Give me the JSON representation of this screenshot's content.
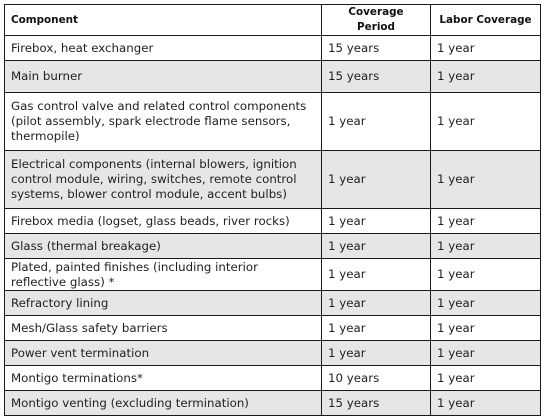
{
  "table": {
    "headers": {
      "component": "Component",
      "coverage_period": "Coverage Period",
      "labor_coverage": "Labor Coverage"
    },
    "rows": [
      {
        "component": "Firebox, heat exchanger",
        "coverage_period": "15 years",
        "labor_coverage": "1 year"
      },
      {
        "component": "Main burner",
        "coverage_period": "15 years",
        "labor_coverage": "1 year"
      },
      {
        "component": "Gas control valve and related control components (pilot assembly, spark electrode flame sensors, thermopile)",
        "coverage_period": "1 year",
        "labor_coverage": "1 year"
      },
      {
        "component": "Electrical components (internal blowers, ignition control module, wiring, switches, remote control systems, blower control module, accent bulbs)",
        "coverage_period": "1 year",
        "labor_coverage": "1 year"
      },
      {
        "component": "Firebox media (logset, glass beads, river rocks)",
        "coverage_period": "1 year",
        "labor_coverage": "1 year"
      },
      {
        "component": "Glass (thermal breakage)",
        "coverage_period": "1 year",
        "labor_coverage": "1 year"
      },
      {
        "component": "Plated, painted finishes (including interior reflective glass) *",
        "coverage_period": "1 year",
        "labor_coverage": "1 year"
      },
      {
        "component": "Refractory lining",
        "coverage_period": "1 year",
        "labor_coverage": "1 year"
      },
      {
        "component": "Mesh/Glass safety barriers",
        "coverage_period": "1 year",
        "labor_coverage": "1 year"
      },
      {
        "component": "Power vent termination",
        "coverage_period": "1 year",
        "labor_coverage": "1 year"
      },
      {
        "component": "Montigo terminations*",
        "coverage_period": "10 years",
        "labor_coverage": "1 year"
      },
      {
        "component": "Montigo venting (excluding termination)",
        "coverage_period": "15 years",
        "labor_coverage": "1 year"
      }
    ]
  }
}
